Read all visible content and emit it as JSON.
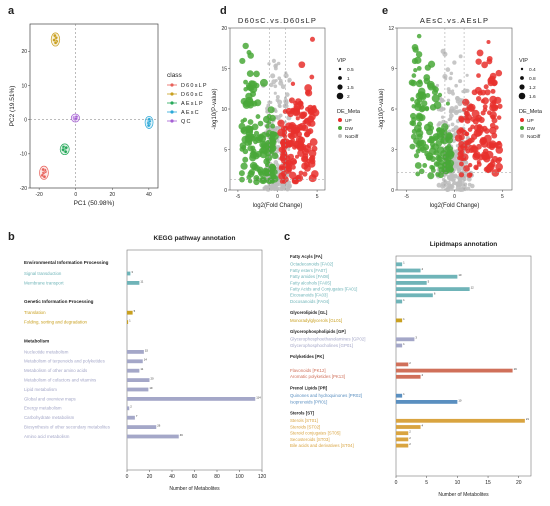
{
  "panel_labels": [
    "a",
    "d",
    "e",
    "b",
    "c"
  ],
  "chart_data": [
    {
      "id": "pca",
      "type": "scatter",
      "title": "",
      "xlabel": "PC1 (50.98%)",
      "ylabel": "PC2 (19.51%)",
      "xlim": [
        -25,
        45
      ],
      "ylim": [
        -20,
        28
      ],
      "xticks": [
        -20,
        0,
        20,
        40
      ],
      "yticks": [
        -20,
        -10,
        0,
        10,
        20
      ],
      "legend_title": "class",
      "series": [
        {
          "name": "D60sLP",
          "color": "#e8615a",
          "points": [
            [
              -17.6,
              -15.6
            ],
            [
              -16.6,
              -15.2
            ],
            [
              -18.2,
              -16.3
            ],
            [
              -17.1,
              -16.7
            ],
            [
              -16.9,
              -14.8
            ],
            [
              -17.8,
              -14.6
            ]
          ]
        },
        {
          "name": "D60sC",
          "color": "#c9a020",
          "points": [
            [
              -11.2,
              23.5
            ],
            [
              -10.4,
              22.9
            ],
            [
              -11.0,
              22.5
            ],
            [
              -11.8,
              23.3
            ],
            [
              -10.7,
              24.0
            ],
            [
              -11.4,
              24.6
            ]
          ]
        },
        {
          "name": "AEsLP",
          "color": "#26a95a",
          "points": [
            [
              -6.6,
              -8.0
            ],
            [
              -5.8,
              -8.5
            ],
            [
              -6.1,
              -9.1
            ],
            [
              -5.2,
              -8.2
            ],
            [
              -6.9,
              -8.8
            ],
            [
              -5.5,
              -9.4
            ]
          ]
        },
        {
          "name": "AEsC",
          "color": "#2aa8d8",
          "points": [
            [
              40.0,
              -0.5
            ],
            [
              40.3,
              -1.3
            ],
            [
              39.8,
              -1.0
            ],
            [
              40.5,
              -0.4
            ],
            [
              39.9,
              -1.7
            ],
            [
              40.2,
              0.1
            ]
          ]
        },
        {
          "name": "QC",
          "color": "#a55fd4",
          "points": [
            [
              -0.8,
              0.6
            ],
            [
              -0.2,
              0.5
            ],
            [
              0.4,
              0.8
            ],
            [
              -0.5,
              0.2
            ],
            [
              0.2,
              0.3
            ]
          ]
        }
      ]
    },
    {
      "id": "volcano-d",
      "type": "scatter",
      "title": "D60sC.vs.D60sLP",
      "xlabel": "log2(Fold Change)",
      "ylabel": "-log10(P-value)",
      "xlim": [
        -6,
        6
      ],
      "ylim": [
        0,
        20
      ],
      "xticks": [
        -5,
        0,
        5
      ],
      "yticks": [
        0,
        5,
        10,
        15,
        20
      ],
      "threshold_fc": [
        -1,
        1
      ],
      "threshold_p": 1.3,
      "vip_legend_title": "VIP",
      "vip_legend": [
        0.5,
        1.0,
        1.5,
        2.0
      ],
      "meta_legend_title": "DE_Meta",
      "meta_legend": [
        {
          "name": "UP",
          "color": "#e8302d"
        },
        {
          "name": "DW",
          "color": "#49a838"
        },
        {
          "name": "NoDiff",
          "color": "#bdbdbd"
        }
      ]
    },
    {
      "id": "volcano-e",
      "type": "scatter",
      "title": "AEsC.vs.AEsLP",
      "xlabel": "log2(Fold Change)",
      "ylabel": "-log10(P-value)",
      "xlim": [
        -6,
        6
      ],
      "ylim": [
        0,
        12
      ],
      "xticks": [
        -5,
        0,
        5
      ],
      "yticks": [
        0,
        3,
        6,
        9,
        12
      ],
      "threshold_fc": [
        -1,
        1
      ],
      "threshold_p": 1.3,
      "vip_legend_title": "VIP",
      "vip_legend": [
        0.4,
        0.8,
        1.2,
        1.6
      ],
      "meta_legend_title": "DE_Meta",
      "meta_legend": [
        {
          "name": "UP",
          "color": "#e8302d"
        },
        {
          "name": "DW",
          "color": "#49a838"
        },
        {
          "name": "NoDiff",
          "color": "#bdbdbd"
        }
      ]
    },
    {
      "id": "kegg",
      "type": "bar",
      "title": "KEGG pathway annotation",
      "xlabel": "Number of Metabolites",
      "xlim": [
        0,
        120
      ],
      "xticks": [
        0,
        20,
        40,
        60,
        80,
        100,
        120
      ],
      "groups": [
        {
          "name": "Environmental Information Processing",
          "color": "#6fb4b8",
          "items": [
            {
              "label": "Signal transduction",
              "value": 3
            },
            {
              "label": "Membrane transport",
              "value": 11
            }
          ]
        },
        {
          "name": "Genetic Information Processing",
          "color": "#c9a020",
          "items": [
            {
              "label": "Translation",
              "value": 5
            },
            {
              "label": "Folding, sorting and degradation",
              "value": 1
            }
          ]
        },
        {
          "name": "Metabolism",
          "color": "#a4a7c8",
          "items": [
            {
              "label": "Nucleotide metabolism",
              "value": 15
            },
            {
              "label": "Metabolism of terpenoids and polyketides",
              "value": 14
            },
            {
              "label": "Metabolism of other amino acids",
              "value": 11
            },
            {
              "label": "Metabolism of cofactors and vitamins",
              "value": 20
            },
            {
              "label": "Lipid metabolism",
              "value": 19
            },
            {
              "label": "Global and overview maps",
              "value": 114
            },
            {
              "label": "Energy metabolism",
              "value": 2
            },
            {
              "label": "Carbohydrate metabolism",
              "value": 7
            },
            {
              "label": "Biosynthesis of other secondary metabolites",
              "value": 26
            },
            {
              "label": "Amino acid metabolism",
              "value": 46
            }
          ]
        }
      ]
    },
    {
      "id": "lipidmaps",
      "type": "bar",
      "title": "Lipidmaps annotation",
      "xlabel": "Number of Metabolites",
      "xlim": [
        0,
        22
      ],
      "xticks": [
        0,
        5,
        10,
        15,
        20
      ],
      "groups": [
        {
          "name": "Fatty Acyls [FA]",
          "color": "#6fb4b8",
          "items": [
            {
              "label": "Octadecanoids [FA02]",
              "value": 1
            },
            {
              "label": "Fatty esters [FA07]",
              "value": 4
            },
            {
              "label": "Fatty amides [FA08]",
              "value": 10
            },
            {
              "label": "Fatty alcohols [FA05]",
              "value": 5
            },
            {
              "label": "Fatty Acids and Conjugates [FA01]",
              "value": 12
            },
            {
              "label": "Eicosanoids [FA03]",
              "value": 6
            },
            {
              "label": "Docosanoids [FA04]",
              "value": 1
            }
          ]
        },
        {
          "name": "Glycerolipids [GL]",
          "color": "#c9a020",
          "items": [
            {
              "label": "Monoradylglycerols [GL01]",
              "value": 1
            }
          ]
        },
        {
          "name": "Glycerophospholipids [GP]",
          "color": "#a4a7c8",
          "items": [
            {
              "label": "Glycerophosphoethanolamines [GP02]",
              "value": 3
            },
            {
              "label": "Glycerophosphocholines [GP01]",
              "value": 1
            }
          ]
        },
        {
          "name": "Polyketides [PK]",
          "color": "#d0705a",
          "items": [
            {
              "label": "",
              "value": 2
            },
            {
              "label": "Flavonoids [PK12]",
              "value": 19
            },
            {
              "label": "Aromatic polyketides [PK13]",
              "value": 4
            }
          ]
        },
        {
          "name": "Prenol Lipids [PR]",
          "color": "#5a8fc0",
          "items": [
            {
              "label": "Quinones and hydroquinones [PR02]",
              "value": 1
            },
            {
              "label": "Isoprenoids [PR01]",
              "value": 10
            }
          ]
        },
        {
          "name": "Sterols [ST]",
          "color": "#d9a440",
          "items": [
            {
              "label": "Sterols [ST01]",
              "value": 21
            },
            {
              "label": "Steroids [ST02]",
              "value": 4
            },
            {
              "label": "Steroid conjugates [ST05]",
              "value": 2
            },
            {
              "label": "Secosteroids [ST03]",
              "value": 2
            },
            {
              "label": "Bile acids and derivatives [ST04]",
              "value": 2
            }
          ]
        }
      ]
    }
  ]
}
